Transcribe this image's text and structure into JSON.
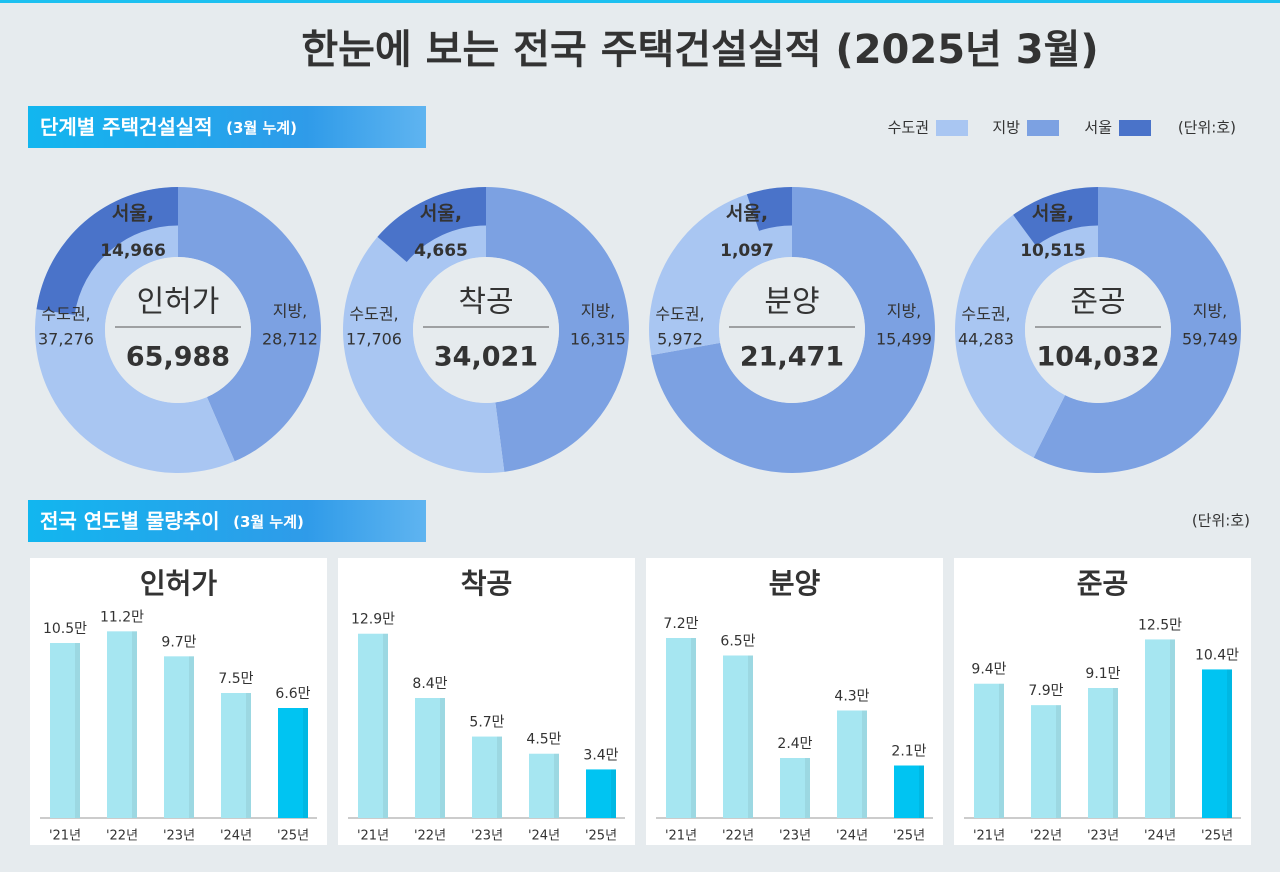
{
  "title": "한눈에 보는 전국 주택건설실적 (2025년 3월)",
  "sections": [
    {
      "title": "단계별 주택건설실적",
      "note": "(3월 누계)"
    },
    {
      "title": "전국 연도별 물량추이",
      "note": "(3월 누계)",
      "unit": "(단위:호)"
    }
  ],
  "legend": {
    "items": [
      {
        "name": "수도권",
        "color": "#a9c6f2"
      },
      {
        "name": "지방",
        "color": "#7ca1e2"
      },
      {
        "name": "서울",
        "color": "#4a73c9"
      }
    ],
    "unit": "(단위:호)"
  },
  "chart_data": [
    {
      "type": "donut",
      "title": "인허가",
      "total": {
        "value": 65988,
        "label": "65,988"
      },
      "labels": [
        "지방,",
        "수도권,",
        "서울,"
      ],
      "values": [
        28712,
        37276,
        14966
      ],
      "value_labels": [
        "28,712",
        "37,276",
        "14,966"
      ],
      "colors": [
        "#7ca1e2",
        "#a9c6f2",
        "#4a73c9"
      ]
    },
    {
      "type": "donut",
      "title": "착공",
      "total": {
        "value": 34021,
        "label": "34,021"
      },
      "labels": [
        "지방,",
        "수도권,",
        "서울,"
      ],
      "values": [
        16315,
        17706,
        4665
      ],
      "value_labels": [
        "16,315",
        "17,706",
        "4,665"
      ],
      "colors": [
        "#7ca1e2",
        "#a9c6f2",
        "#4a73c9"
      ]
    },
    {
      "type": "donut",
      "title": "분양",
      "total": {
        "value": 21471,
        "label": "21,471"
      },
      "labels": [
        "지방,",
        "수도권,",
        "서울,"
      ],
      "values": [
        15499,
        5972,
        1097
      ],
      "value_labels": [
        "15,499",
        "5,972",
        "1,097"
      ],
      "colors": [
        "#7ca1e2",
        "#a9c6f2",
        "#4a73c9"
      ]
    },
    {
      "type": "donut",
      "title": "준공",
      "total": {
        "value": 104032,
        "label": "104,032"
      },
      "labels": [
        "지방,",
        "수도권,",
        "서울,"
      ],
      "values": [
        59749,
        44283,
        10515
      ],
      "value_labels": [
        "59,749",
        "44,283",
        "10,515"
      ],
      "colors": [
        "#7ca1e2",
        "#a9c6f2",
        "#4a73c9"
      ]
    },
    {
      "type": "bar",
      "title": "인허가",
      "categories": [
        "'21년",
        "'22년",
        "'23년",
        "'24년",
        "'25년"
      ],
      "values": [
        10.5,
        11.2,
        9.7,
        7.5,
        6.6
      ],
      "value_labels": [
        "10.5만",
        "11.2만",
        "9.7만",
        "7.5만",
        "6.6만"
      ],
      "colors": [
        "#a6e6f1",
        "#a6e6f1",
        "#a6e6f1",
        "#a6e6f1",
        "#00c4f2"
      ],
      "ylim": [
        0,
        12
      ]
    },
    {
      "type": "bar",
      "title": "착공",
      "categories": [
        "'21년",
        "'22년",
        "'23년",
        "'24년",
        "'25년"
      ],
      "values": [
        12.9,
        8.4,
        5.7,
        4.5,
        3.4
      ],
      "value_labels": [
        "12.9만",
        "8.4만",
        "5.7만",
        "4.5만",
        "3.4만"
      ],
      "colors": [
        "#a6e6f1",
        "#a6e6f1",
        "#a6e6f1",
        "#a6e6f1",
        "#00c4f2"
      ],
      "ylim": [
        0,
        14
      ]
    },
    {
      "type": "bar",
      "title": "분양",
      "categories": [
        "'21년",
        "'22년",
        "'23년",
        "'24년",
        "'25년"
      ],
      "values": [
        7.2,
        6.5,
        2.4,
        4.3,
        2.1
      ],
      "value_labels": [
        "7.2만",
        "6.5만",
        "2.4만",
        "4.3만",
        "2.1만"
      ],
      "colors": [
        "#a6e6f1",
        "#a6e6f1",
        "#a6e6f1",
        "#a6e6f1",
        "#00c4f2"
      ],
      "ylim": [
        0,
        8
      ]
    },
    {
      "type": "bar",
      "title": "준공",
      "categories": [
        "'21년",
        "'22년",
        "'23년",
        "'24년",
        "'25년"
      ],
      "values": [
        9.4,
        7.9,
        9.1,
        12.5,
        10.4
      ],
      "value_labels": [
        "9.4만",
        "7.9만",
        "9.1만",
        "12.5만",
        "10.4만"
      ],
      "colors": [
        "#a6e6f1",
        "#a6e6f1",
        "#a6e6f1",
        "#a6e6f1",
        "#00c4f2"
      ],
      "ylim": [
        0,
        14
      ]
    }
  ]
}
